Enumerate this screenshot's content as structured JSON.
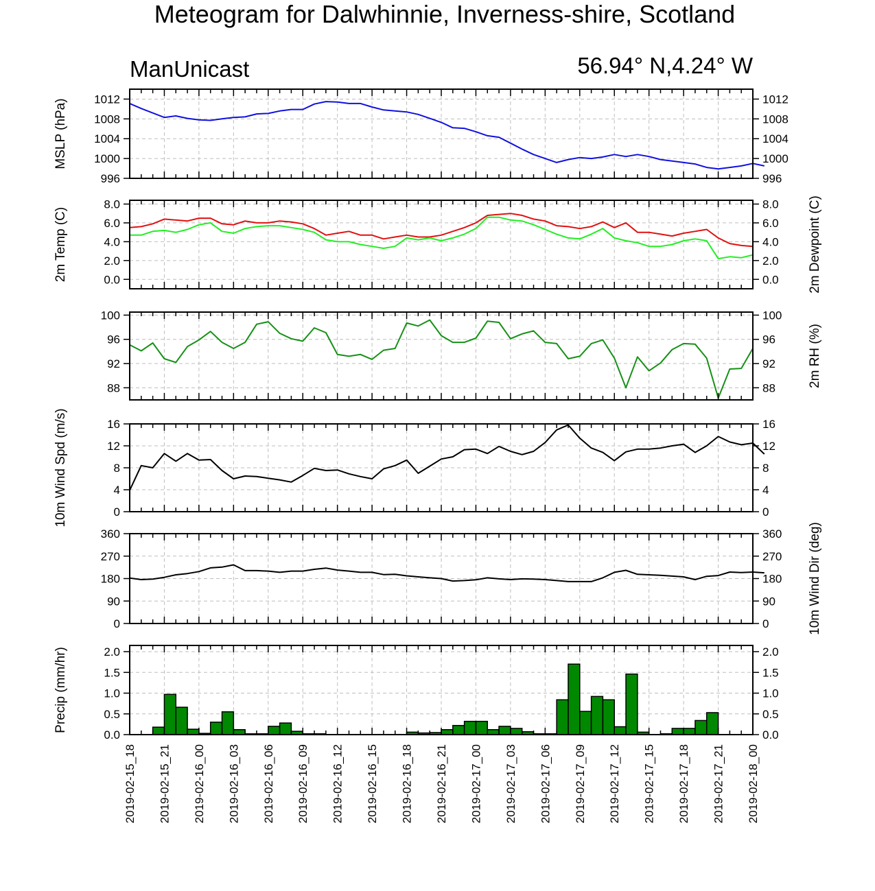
{
  "title": "Meteogram for Dalwhinnie, Inverness-shire, Scotland",
  "subtitle_left": "ManUnicast",
  "subtitle_right": "56.94° N,4.24° W",
  "colors": {
    "mslp": "#1010e0",
    "temp": "#e01010",
    "dewpoint": "#22ee22",
    "rh": "#159015",
    "wind": "#000000",
    "precip_fill": "#008800"
  },
  "chart_data": [
    {
      "id": "mslp",
      "type": "line",
      "ylabel_left": "MSLP (hPa)",
      "ylabel_right": "",
      "ylim": [
        996,
        1014
      ],
      "yticks": [
        996,
        1000,
        1004,
        1008,
        1012
      ],
      "tick_decimals": 0,
      "x_start_hour": 0,
      "x_step_hours": 1,
      "series": [
        {
          "color": "mslp",
          "values": [
            1011.1,
            1010.1,
            1009.2,
            1008.3,
            1008.6,
            1008.1,
            1007.8,
            1007.7,
            1008.0,
            1008.3,
            1008.4,
            1009.0,
            1009.1,
            1009.6,
            1009.9,
            1009.9,
            1011.0,
            1011.5,
            1011.4,
            1011.1,
            1011.1,
            1010.4,
            1009.8,
            1009.6,
            1009.4,
            1008.9,
            1008.1,
            1007.3,
            1006.2,
            1006.1,
            1005.4,
            1004.6,
            1004.3,
            1003.1,
            1001.9,
            1000.8,
            1000.0,
            999.2,
            999.8,
            1000.2,
            1000.0,
            1000.3,
            1000.8,
            1000.4,
            1000.8,
            1000.4,
            999.8,
            999.5,
            999.2,
            998.9,
            998.2,
            997.9,
            998.2,
            998.5,
            999.0,
            998.5
          ]
        }
      ]
    },
    {
      "id": "temperature",
      "type": "line",
      "ylabel_left": "2m Temp (C)",
      "ylabel_right": "2m Dewpoint (C)",
      "ylim": [
        -1,
        8.4
      ],
      "yticks": [
        0,
        2,
        4,
        6,
        8
      ],
      "tick_decimals": 1,
      "x_start_hour": 0,
      "x_step_hours": 1,
      "series": [
        {
          "color": "temp",
          "values": [
            5.5,
            5.6,
            5.9,
            6.4,
            6.3,
            6.2,
            6.5,
            6.5,
            5.9,
            5.8,
            6.2,
            6.0,
            6.0,
            6.2,
            6.1,
            5.9,
            5.4,
            4.7,
            4.9,
            5.1,
            4.7,
            4.7,
            4.3,
            4.5,
            4.7,
            4.5,
            4.5,
            4.7,
            5.1,
            5.5,
            6.0,
            6.8,
            6.9,
            7.0,
            6.8,
            6.4,
            6.2,
            5.7,
            5.6,
            5.4,
            5.6,
            6.1,
            5.5,
            6.0,
            5.0,
            5.0,
            4.8,
            4.6,
            4.9,
            5.1,
            5.3,
            4.4,
            3.8,
            3.6,
            3.5
          ]
        },
        {
          "color": "dewpoint",
          "values": [
            4.7,
            4.7,
            5.1,
            5.2,
            5.0,
            5.3,
            5.8,
            6.0,
            5.1,
            4.9,
            5.4,
            5.6,
            5.7,
            5.7,
            5.5,
            5.3,
            5.0,
            4.2,
            4.0,
            4.0,
            3.7,
            3.5,
            3.3,
            3.5,
            4.4,
            4.2,
            4.4,
            4.1,
            4.4,
            4.8,
            5.4,
            6.6,
            6.6,
            6.3,
            6.2,
            5.8,
            5.3,
            4.8,
            4.4,
            4.3,
            4.8,
            5.4,
            4.4,
            4.1,
            3.9,
            3.5,
            3.5,
            3.7,
            4.1,
            4.3,
            4.1,
            2.2,
            2.4,
            2.3,
            2.6
          ]
        }
      ]
    },
    {
      "id": "rh",
      "type": "line",
      "ylabel_left": "",
      "ylabel_right": "2m RH (%)",
      "ylim": [
        86,
        100.5
      ],
      "yticks": [
        88,
        92,
        96,
        100
      ],
      "tick_decimals": 0,
      "x_start_hour": 0,
      "x_step_hours": 1,
      "series": [
        {
          "color": "rh",
          "values": [
            95.1,
            94.1,
            95.4,
            92.8,
            92.2,
            94.8,
            95.9,
            97.3,
            95.5,
            94.5,
            95.5,
            98.5,
            98.9,
            97.0,
            96.1,
            95.7,
            97.9,
            97.1,
            93.5,
            93.2,
            93.5,
            92.7,
            94.2,
            94.5,
            98.7,
            98.2,
            99.2,
            96.6,
            95.5,
            95.5,
            96.2,
            99.0,
            98.8,
            96.1,
            96.9,
            97.4,
            95.5,
            95.3,
            92.8,
            93.2,
            95.3,
            95.9,
            92.9,
            88.0,
            93.1,
            90.8,
            92.1,
            94.3,
            95.3,
            95.2,
            92.9,
            86.3,
            91.1,
            91.2,
            94.5
          ]
        }
      ]
    },
    {
      "id": "wind_speed",
      "type": "line",
      "ylabel_left": "10m Wind Spd (m/s)",
      "ylabel_right": "",
      "ylim": [
        0,
        16
      ],
      "yticks": [
        0,
        4,
        8,
        12,
        16
      ],
      "tick_decimals": 0,
      "x_start_hour": 0,
      "x_step_hours": 1,
      "series": [
        {
          "color": "wind",
          "values": [
            3.9,
            8.4,
            8.0,
            10.6,
            9.2,
            10.6,
            9.4,
            9.5,
            7.5,
            6.0,
            6.5,
            6.4,
            6.1,
            5.8,
            5.4,
            6.6,
            7.9,
            7.5,
            7.6,
            6.9,
            6.4,
            6.0,
            7.8,
            8.4,
            9.4,
            7.0,
            8.3,
            9.6,
            10.0,
            11.3,
            11.4,
            10.6,
            11.9,
            11.0,
            10.4,
            11.0,
            12.6,
            14.9,
            15.8,
            13.4,
            11.6,
            10.8,
            9.3,
            10.9,
            11.4,
            11.4,
            11.6,
            12.0,
            12.3,
            10.8,
            12.0,
            13.7,
            12.7,
            12.2,
            12.5,
            10.5
          ]
        }
      ]
    },
    {
      "id": "wind_dir",
      "type": "line",
      "ylabel_left": "",
      "ylabel_right": "10m Wind Dir (deg)",
      "ylim": [
        0,
        360
      ],
      "yticks": [
        0,
        90,
        180,
        270,
        360
      ],
      "tick_decimals": 0,
      "x_start_hour": 0,
      "x_step_hours": 1,
      "series": [
        {
          "color": "wind",
          "values": [
            182,
            176,
            178,
            185,
            195,
            200,
            208,
            223,
            226,
            235,
            212,
            212,
            210,
            205,
            210,
            210,
            217,
            222,
            214,
            210,
            205,
            205,
            196,
            197,
            191,
            187,
            183,
            180,
            170,
            172,
            175,
            183,
            179,
            176,
            179,
            178,
            176,
            172,
            168,
            168,
            168,
            183,
            205,
            213,
            197,
            195,
            193,
            190,
            187,
            176,
            189,
            192,
            206,
            204,
            206,
            203
          ]
        }
      ]
    },
    {
      "id": "precip",
      "type": "bar",
      "ylabel_left": "Precip (mm/hr)",
      "ylabel_right": "",
      "ylim": [
        0,
        2.15
      ],
      "yticks": [
        0,
        0.5,
        1,
        1.5,
        2
      ],
      "tick_decimals": 1,
      "x_start_hour": 0,
      "x_step_hours": 1,
      "series": [
        {
          "color": "precip_fill",
          "values": [
            0,
            0,
            0.18,
            0.97,
            0.66,
            0.13,
            0.03,
            0.3,
            0.55,
            0.12,
            0.02,
            0.02,
            0.2,
            0.28,
            0.08,
            0.02,
            0.02,
            0,
            0,
            0,
            0,
            0,
            0,
            0,
            0.06,
            0.04,
            0.05,
            0.12,
            0.22,
            0.32,
            0.32,
            0.12,
            0.2,
            0.15,
            0.07,
            0.02,
            0.02,
            0.84,
            1.7,
            0.56,
            0.92,
            0.84,
            0.19,
            1.46,
            0.06,
            0,
            0.02,
            0.15,
            0.15,
            0.34,
            0.53,
            0,
            0,
            0,
            0
          ]
        }
      ]
    }
  ],
  "x_axis": {
    "tick_step_hours": 3,
    "tick_labels": [
      "2019-02-15_18",
      "2019-02-15_21",
      "2019-02-16_00",
      "2019-02-16_03",
      "2019-02-16_06",
      "2019-02-16_09",
      "2019-02-16_12",
      "2019-02-16_15",
      "2019-02-16_18",
      "2019-02-16_21",
      "2019-02-17_00",
      "2019-02-17_03",
      "2019-02-17_06",
      "2019-02-17_09",
      "2019-02-17_12",
      "2019-02-17_15",
      "2019-02-17_18",
      "2019-02-17_21",
      "2019-02-18_00"
    ]
  }
}
